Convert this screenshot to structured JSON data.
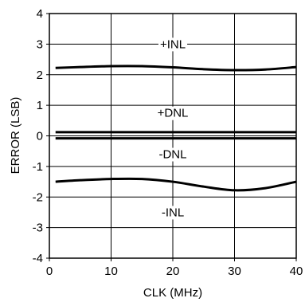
{
  "chart_data": {
    "type": "line",
    "xlabel": "CLK (MHz)",
    "ylabel": "ERROR (LSB)",
    "xlim": [
      0,
      40
    ],
    "ylim": [
      -4,
      4
    ],
    "xticks": [
      0,
      10,
      20,
      30,
      40
    ],
    "yticks": [
      -4,
      -3,
      -2,
      -1,
      0,
      1,
      2,
      3,
      4
    ],
    "grid": true,
    "series": [
      {
        "name": "+INL",
        "x": [
          1,
          5,
          10,
          15,
          20,
          25,
          30,
          35,
          40
        ],
        "y": [
          2.22,
          2.25,
          2.28,
          2.28,
          2.24,
          2.18,
          2.15,
          2.17,
          2.25
        ]
      },
      {
        "name": "+DNL",
        "x": [
          1,
          10,
          20,
          30,
          40
        ],
        "y": [
          0.12,
          0.12,
          0.12,
          0.12,
          0.12
        ]
      },
      {
        "name": "-DNL",
        "x": [
          1,
          10,
          20,
          30,
          40
        ],
        "y": [
          -0.08,
          -0.08,
          -0.08,
          -0.08,
          -0.08
        ]
      },
      {
        "name": "-INL",
        "x": [
          1,
          5,
          10,
          15,
          20,
          25,
          30,
          35,
          40
        ],
        "y": [
          -1.5,
          -1.45,
          -1.41,
          -1.41,
          -1.5,
          -1.66,
          -1.78,
          -1.71,
          -1.5
        ]
      }
    ],
    "annotations": [
      {
        "text": "+INL",
        "x": 20,
        "y": 3.0
      },
      {
        "text": "+DNL",
        "x": 20,
        "y": 0.75
      },
      {
        "text": "-DNL",
        "x": 20,
        "y": -0.6
      },
      {
        "text": "-INL",
        "x": 20,
        "y": -2.5
      }
    ]
  }
}
